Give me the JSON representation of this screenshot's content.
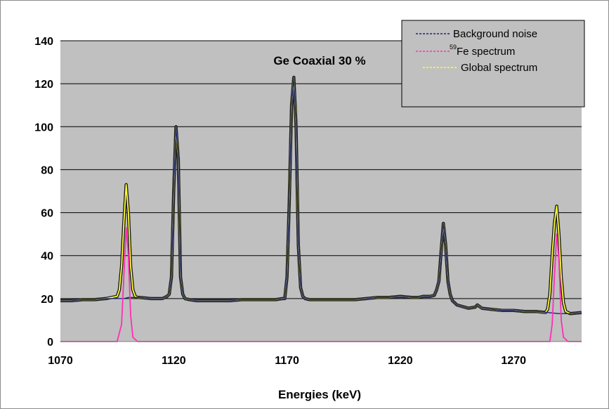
{
  "chart_data": {
    "type": "line",
    "title": "Ge Coaxial 30 %",
    "xlabel": "Energies (keV)",
    "ylabel": "",
    "xlim": [
      1070,
      1300
    ],
    "ylim": [
      0,
      140
    ],
    "xticks": [
      "1070",
      "1120",
      "1170",
      "1220",
      "1270"
    ],
    "yticks": [
      "0",
      "20",
      "40",
      "60",
      "80",
      "100",
      "120",
      "140"
    ],
    "grid": "horizontal",
    "legend_position": "top-right",
    "background_color": "#c0c0c0",
    "series": [
      {
        "name": "Background noise",
        "color": "#1a237e",
        "x": [
          1070,
          1075,
          1080,
          1085,
          1090,
          1095,
          1098,
          1100,
          1102,
          1105,
          1110,
          1115,
          1117,
          1118,
          1119,
          1120,
          1121,
          1122,
          1123,
          1124,
          1125,
          1127,
          1130,
          1135,
          1140,
          1145,
          1150,
          1155,
          1160,
          1165,
          1168,
          1169,
          1170,
          1171,
          1172,
          1173,
          1174,
          1175,
          1176,
          1177,
          1178,
          1180,
          1185,
          1190,
          1195,
          1200,
          1205,
          1210,
          1215,
          1220,
          1225,
          1228,
          1230,
          1233,
          1235,
          1236,
          1237,
          1238,
          1239,
          1240,
          1241,
          1242,
          1243,
          1245,
          1250,
          1253,
          1254,
          1256,
          1260,
          1265,
          1270,
          1275,
          1280,
          1285,
          1290,
          1295,
          1300
        ],
        "y": [
          19,
          19,
          19.5,
          19.5,
          20,
          20,
          20,
          20.5,
          20.5,
          20.5,
          20,
          20,
          21,
          22,
          30,
          70,
          100,
          85,
          30,
          22,
          20,
          19.5,
          19,
          19,
          19,
          19,
          19.5,
          19.5,
          19.5,
          19.5,
          20,
          20,
          30,
          65,
          110,
          123,
          100,
          45,
          25,
          21,
          20,
          19.5,
          19.5,
          19.5,
          19.5,
          19.5,
          20,
          20.5,
          20.5,
          21,
          20.5,
          20.5,
          21,
          21,
          21.5,
          24,
          28,
          42,
          55,
          45,
          28,
          22,
          19,
          17,
          15.5,
          16,
          17,
          15.5,
          15,
          14.5,
          14.5,
          14,
          14,
          13.5,
          13,
          13,
          13.5
        ]
      },
      {
        "name": "59Fe spectrum",
        "label_sup": "59",
        "label_main": "Fe spectrum",
        "color": "#ff2fb5",
        "x": [
          1070,
          1093,
          1095,
          1097,
          1098,
          1099,
          1100,
          1101,
          1102,
          1104,
          1106,
          1284,
          1286,
          1287,
          1288,
          1289,
          1290,
          1291,
          1292,
          1294,
          1296,
          1300
        ],
        "y": [
          0,
          0,
          0,
          8,
          30,
          53,
          40,
          12,
          2,
          0,
          0,
          0,
          0,
          8,
          30,
          50,
          38,
          10,
          2,
          0,
          0,
          0
        ]
      },
      {
        "name": "Global spectrum",
        "color": "#ffff33",
        "x": [
          1070,
          1075,
          1080,
          1085,
          1090,
          1095,
          1096,
          1097,
          1098,
          1099,
          1100,
          1101,
          1102,
          1103,
          1104,
          1105,
          1110,
          1115,
          1117,
          1118,
          1119,
          1120,
          1121,
          1122,
          1123,
          1124,
          1125,
          1127,
          1130,
          1135,
          1140,
          1145,
          1150,
          1155,
          1160,
          1165,
          1168,
          1169,
          1170,
          1171,
          1172,
          1173,
          1174,
          1175,
          1176,
          1177,
          1178,
          1180,
          1185,
          1190,
          1195,
          1200,
          1205,
          1210,
          1215,
          1220,
          1225,
          1228,
          1230,
          1233,
          1235,
          1236,
          1237,
          1238,
          1239,
          1240,
          1241,
          1242,
          1243,
          1245,
          1250,
          1253,
          1254,
          1256,
          1260,
          1265,
          1270,
          1275,
          1280,
          1284,
          1285,
          1286,
          1287,
          1288,
          1289,
          1290,
          1291,
          1292,
          1293,
          1295,
          1300
        ],
        "y": [
          19,
          19,
          19.5,
          19.5,
          20,
          21,
          24,
          35,
          55,
          73,
          60,
          35,
          24,
          21,
          20.5,
          20.5,
          20,
          20,
          21,
          22,
          30,
          70,
          100,
          85,
          30,
          22,
          20,
          19.5,
          19,
          19,
          19,
          19,
          19.5,
          19.5,
          19.5,
          19.5,
          20,
          20,
          30,
          65,
          110,
          123,
          100,
          45,
          25,
          21,
          20,
          19.5,
          19.5,
          19.5,
          19.5,
          19.5,
          20,
          20.5,
          20.5,
          21,
          20.5,
          20.5,
          21,
          21,
          21.5,
          24,
          28,
          42,
          55,
          45,
          28,
          22,
          19,
          17,
          15.5,
          16,
          17,
          15.5,
          15,
          14.5,
          14.5,
          14,
          14,
          13.5,
          15,
          22,
          40,
          55,
          63,
          50,
          30,
          18,
          14,
          13,
          13.5
        ]
      }
    ]
  }
}
